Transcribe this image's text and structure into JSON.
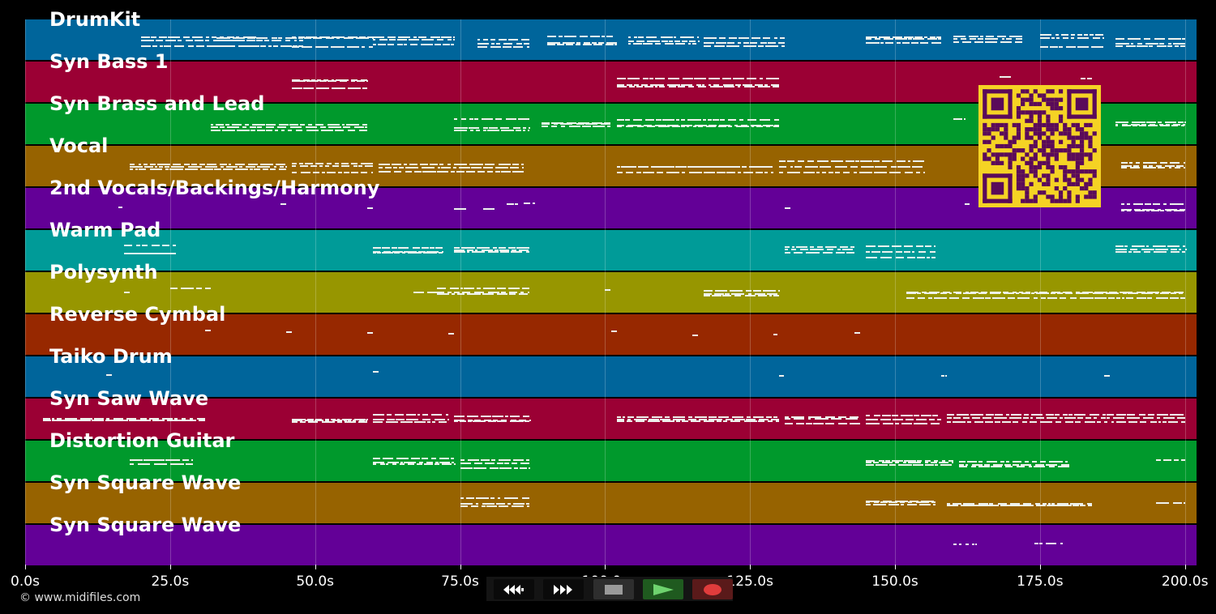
{
  "tracks": [
    {
      "name": "DrumKit",
      "color": "#00659b"
    },
    {
      "name": "Syn Bass 1",
      "color": "#9b0034"
    },
    {
      "name": "Syn Brass and Lead",
      "color": "#00992c"
    },
    {
      "name": "Vocal",
      "color": "#976300"
    },
    {
      "name": "2nd Vocals/Backings/Harmony",
      "color": "#630097"
    },
    {
      "name": "Warm Pad",
      "color": "#009b98"
    },
    {
      "name": "Polysynth",
      "color": "#979600"
    },
    {
      "name": "Reverse Cymbal",
      "color": "#972800"
    },
    {
      "name": "Taiko Drum",
      "color": "#00659b"
    },
    {
      "name": "Syn Saw Wave",
      "color": "#9b0034"
    },
    {
      "name": "Distortion Guitar",
      "color": "#00992c"
    },
    {
      "name": "Syn Square Wave",
      "color": "#976300"
    },
    {
      "name": "Syn Square Wave",
      "color": "#630097"
    }
  ],
  "timeline": {
    "ticks": [
      "0.0s",
      "25.0s",
      "50.0s",
      "75.0s",
      "100.0s",
      "125.0s",
      "150.0s",
      "175.0s",
      "200.0s"
    ],
    "duration_seconds": 202
  },
  "notes": [
    [
      [
        20,
        40
      ],
      [
        33,
        48
      ],
      [
        46,
        60
      ],
      [
        60,
        74
      ],
      [
        78,
        87
      ],
      [
        90,
        102
      ],
      [
        104,
        116
      ],
      [
        117,
        131
      ],
      [
        145,
        158
      ],
      [
        160,
        172
      ],
      [
        175,
        186
      ],
      [
        188,
        200
      ]
    ],
    [
      [
        46,
        59
      ],
      [
        102,
        130
      ],
      [
        168,
        170
      ],
      [
        182,
        184
      ]
    ],
    [
      [
        32,
        59
      ],
      [
        74,
        87
      ],
      [
        89,
        101
      ],
      [
        102,
        130
      ],
      [
        160,
        162
      ],
      [
        168,
        176
      ],
      [
        188,
        200
      ]
    ],
    [
      [
        18,
        45
      ],
      [
        46,
        60
      ],
      [
        61,
        86
      ],
      [
        102,
        129
      ],
      [
        130,
        155
      ],
      [
        189,
        200
      ]
    ],
    [
      [
        16,
        17
      ],
      [
        44,
        45
      ],
      [
        59,
        60
      ],
      [
        74,
        76
      ],
      [
        79,
        81
      ],
      [
        83,
        85
      ],
      [
        86,
        88
      ],
      [
        131,
        132
      ],
      [
        162,
        163
      ],
      [
        189,
        200
      ]
    ],
    [
      [
        17,
        26
      ],
      [
        60,
        72
      ],
      [
        74,
        87
      ],
      [
        131,
        143
      ],
      [
        145,
        157
      ],
      [
        188,
        200
      ]
    ],
    [
      [
        17,
        18
      ],
      [
        25,
        32
      ],
      [
        67,
        71
      ],
      [
        71,
        87
      ],
      [
        100,
        101
      ],
      [
        117,
        130
      ],
      [
        152,
        200
      ]
    ],
    [
      [
        31,
        32
      ],
      [
        45,
        46
      ],
      [
        59,
        60
      ],
      [
        73,
        74
      ],
      [
        101,
        102
      ],
      [
        115,
        116
      ],
      [
        129,
        130
      ],
      [
        143,
        144
      ]
    ],
    [
      [
        14,
        15
      ],
      [
        60,
        61
      ],
      [
        130,
        131
      ],
      [
        158,
        159
      ],
      [
        186,
        187
      ]
    ],
    [
      [
        3,
        31
      ],
      [
        46,
        59
      ],
      [
        60,
        73
      ],
      [
        74,
        87
      ],
      [
        102,
        130
      ],
      [
        131,
        144
      ],
      [
        145,
        158
      ],
      [
        159,
        200
      ]
    ],
    [
      [
        18,
        29
      ],
      [
        60,
        74
      ],
      [
        75,
        87
      ],
      [
        145,
        160
      ],
      [
        161,
        180
      ],
      [
        195,
        200
      ]
    ],
    [
      [
        75,
        87
      ],
      [
        145,
        157
      ],
      [
        159,
        184
      ],
      [
        195,
        200
      ]
    ],
    [
      [
        160,
        164
      ],
      [
        174,
        179
      ]
    ]
  ],
  "transport": {
    "buttons": [
      {
        "name": "rewind",
        "icon": "rewind-icon"
      },
      {
        "name": "fast-forward",
        "icon": "fast-forward-icon"
      },
      {
        "name": "stop",
        "icon": "stop-icon"
      },
      {
        "name": "play",
        "icon": "play-icon"
      },
      {
        "name": "record",
        "icon": "record-icon"
      }
    ]
  },
  "qr_code": {
    "icon": "qr-code-icon",
    "fg": "#5a0a5a",
    "bg": "#f5d324"
  },
  "copyright": "© www.midifiles.com"
}
